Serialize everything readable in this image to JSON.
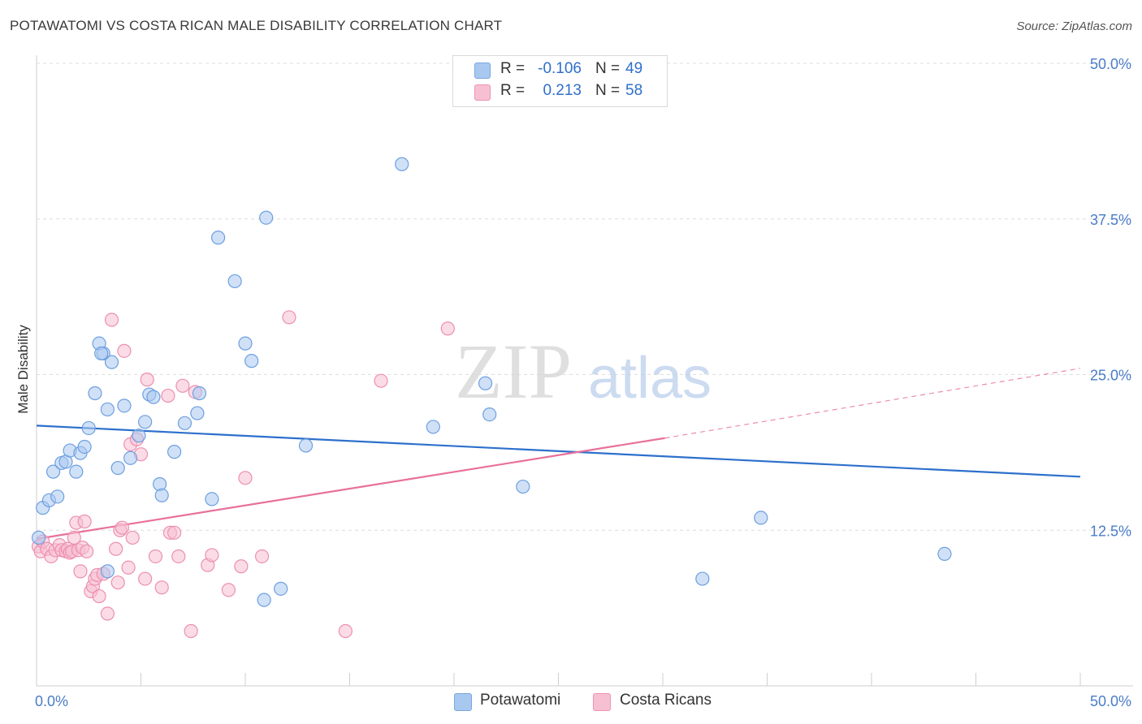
{
  "title": "POTAWATOMI VS COSTA RICAN MALE DISABILITY CORRELATION CHART",
  "source": "Source: ZipAtlas.com",
  "watermark": {
    "zip": "ZIP",
    "atlas": "atlas"
  },
  "legend": {
    "rows": [
      {
        "r_label": "R =",
        "r_value": "-0.106",
        "n_label": "N =",
        "n_value": "49",
        "color": "#a9c8f0",
        "border": "#7aa7e0"
      },
      {
        "r_label": "R =",
        "r_value": "0.213",
        "n_label": "N =",
        "n_value": "58",
        "color": "#f7c0d2",
        "border": "#ee93b2"
      }
    ]
  },
  "bottom_legend": {
    "items": [
      "Potawatomi",
      "Costa Ricans"
    ]
  },
  "chart_data": {
    "type": "scatter",
    "title": "POTAWATOMI VS COSTA RICAN MALE DISABILITY CORRELATION CHART",
    "xlabel": "",
    "ylabel": "Male Disability",
    "xlim": [
      0,
      50
    ],
    "ylim": [
      0,
      50
    ],
    "x_tick_labels": [
      "0.0%",
      "50.0%"
    ],
    "y_tick_labels": [
      "12.5%",
      "25.0%",
      "37.5%",
      "50.0%"
    ],
    "y_ticks": [
      12.5,
      25.0,
      37.5,
      50.0
    ],
    "grid": true,
    "series": [
      {
        "name": "Potawatomi",
        "color": "#a9c8f0",
        "edge": "#6d9fe0",
        "line_color": "#2d70cc",
        "trend": [
          [
            0,
            20.9
          ],
          [
            50,
            16.8
          ]
        ],
        "points": [
          [
            0.1,
            11.9
          ],
          [
            0.3,
            14.3
          ],
          [
            0.6,
            14.9
          ],
          [
            0.8,
            17.2
          ],
          [
            1.0,
            15.2
          ],
          [
            1.2,
            17.9
          ],
          [
            1.4,
            18.0
          ],
          [
            1.6,
            18.9
          ],
          [
            1.9,
            17.2
          ],
          [
            2.1,
            18.7
          ],
          [
            2.3,
            19.2
          ],
          [
            2.5,
            20.7
          ],
          [
            2.8,
            23.5
          ],
          [
            3.0,
            27.5
          ],
          [
            3.2,
            26.7
          ],
          [
            3.4,
            22.2
          ],
          [
            3.6,
            26.0
          ],
          [
            3.9,
            17.5
          ],
          [
            4.2,
            22.5
          ],
          [
            4.5,
            18.3
          ],
          [
            4.9,
            20.1
          ],
          [
            5.2,
            21.2
          ],
          [
            5.4,
            23.4
          ],
          [
            5.6,
            23.2
          ],
          [
            5.9,
            16.2
          ],
          [
            6.0,
            15.3
          ],
          [
            6.6,
            18.8
          ],
          [
            7.1,
            21.1
          ],
          [
            7.7,
            21.9
          ],
          [
            7.8,
            23.5
          ],
          [
            8.4,
            15.0
          ],
          [
            8.7,
            36.0
          ],
          [
            9.5,
            32.5
          ],
          [
            10.0,
            27.5
          ],
          [
            10.3,
            26.1
          ],
          [
            10.9,
            6.9
          ],
          [
            11.0,
            37.6
          ],
          [
            11.7,
            7.8
          ],
          [
            12.9,
            19.3
          ],
          [
            17.5,
            41.9
          ],
          [
            19.0,
            20.8
          ],
          [
            21.5,
            24.3
          ],
          [
            21.7,
            21.8
          ],
          [
            23.3,
            16.0
          ],
          [
            31.9,
            8.6
          ],
          [
            34.7,
            13.5
          ],
          [
            43.5,
            10.6
          ],
          [
            3.4,
            9.2
          ],
          [
            3.1,
            26.7
          ]
        ]
      },
      {
        "name": "Costa Ricans",
        "color": "#f7c0d2",
        "edge": "#ec8fb0",
        "line_color": "#e8709a",
        "trend": [
          [
            0,
            11.8
          ],
          [
            30.1,
            19.9
          ]
        ],
        "trend_dashed": [
          [
            30.1,
            19.9
          ],
          [
            50,
            25.5
          ]
        ],
        "points": [
          [
            0.1,
            11.2
          ],
          [
            0.2,
            10.8
          ],
          [
            0.3,
            11.6
          ],
          [
            0.5,
            11.0
          ],
          [
            0.7,
            10.4
          ],
          [
            0.9,
            10.9
          ],
          [
            1.1,
            11.3
          ],
          [
            1.2,
            10.9
          ],
          [
            1.4,
            10.8
          ],
          [
            1.5,
            11.0
          ],
          [
            1.6,
            10.7
          ],
          [
            1.7,
            10.8
          ],
          [
            1.8,
            11.9
          ],
          [
            1.9,
            13.1
          ],
          [
            2.0,
            10.9
          ],
          [
            2.1,
            9.2
          ],
          [
            2.2,
            11.1
          ],
          [
            2.3,
            13.2
          ],
          [
            2.4,
            10.8
          ],
          [
            2.6,
            7.6
          ],
          [
            2.7,
            8.0
          ],
          [
            2.8,
            8.6
          ],
          [
            2.9,
            8.9
          ],
          [
            3.0,
            7.2
          ],
          [
            3.2,
            9.0
          ],
          [
            3.4,
            5.8
          ],
          [
            3.6,
            29.4
          ],
          [
            3.8,
            11.0
          ],
          [
            3.9,
            8.3
          ],
          [
            4.0,
            12.5
          ],
          [
            4.1,
            12.7
          ],
          [
            4.2,
            26.9
          ],
          [
            4.4,
            9.5
          ],
          [
            4.5,
            19.4
          ],
          [
            4.6,
            11.9
          ],
          [
            4.8,
            19.8
          ],
          [
            5.0,
            18.6
          ],
          [
            5.2,
            8.6
          ],
          [
            5.3,
            24.6
          ],
          [
            5.7,
            10.4
          ],
          [
            6.0,
            7.9
          ],
          [
            6.3,
            23.3
          ],
          [
            6.4,
            12.3
          ],
          [
            6.6,
            12.3
          ],
          [
            6.8,
            10.4
          ],
          [
            7.0,
            24.1
          ],
          [
            7.4,
            4.4
          ],
          [
            7.6,
            23.6
          ],
          [
            8.2,
            9.7
          ],
          [
            8.4,
            10.5
          ],
          [
            9.2,
            7.7
          ],
          [
            9.8,
            9.6
          ],
          [
            10.0,
            16.7
          ],
          [
            10.8,
            10.4
          ],
          [
            12.1,
            29.6
          ],
          [
            14.8,
            4.4
          ],
          [
            16.5,
            24.5
          ],
          [
            19.7,
            28.7
          ]
        ]
      }
    ]
  }
}
